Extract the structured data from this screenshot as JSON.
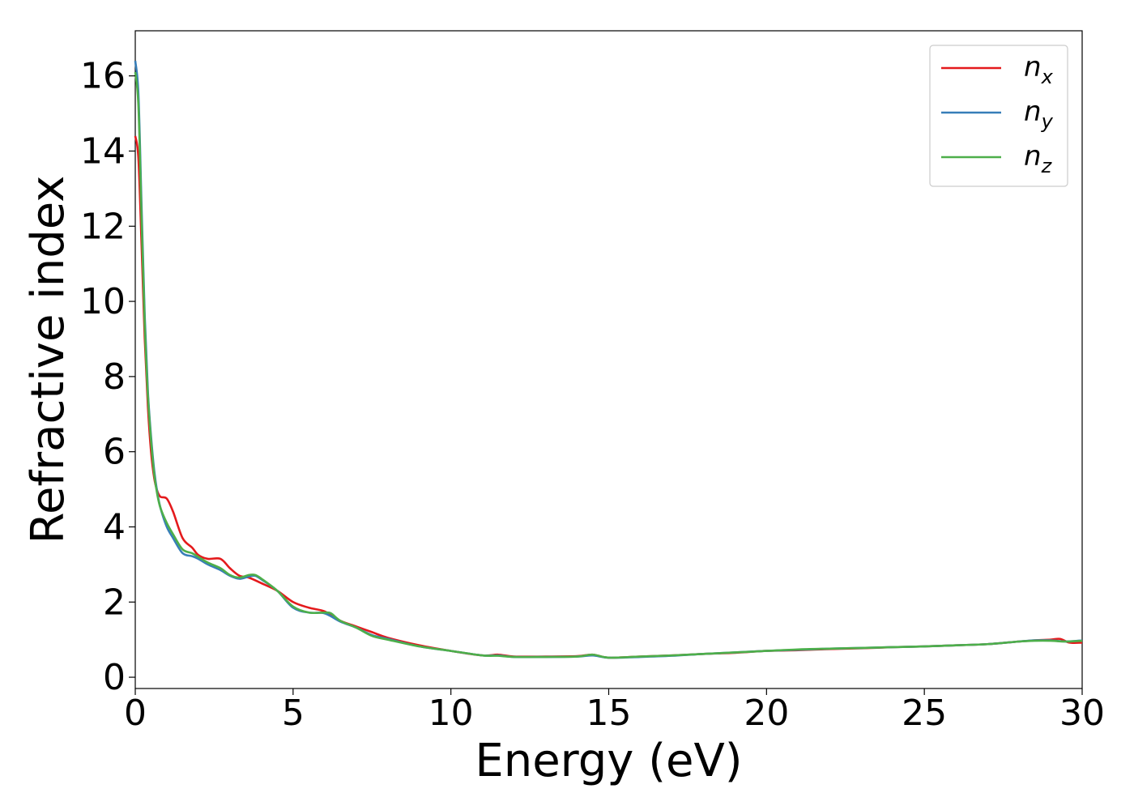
{
  "chart_data": {
    "type": "line",
    "xlabel": "Energy (eV)",
    "ylabel": "Refractive index",
    "xlim": [
      0,
      30
    ],
    "ylim": [
      -0.3,
      17.2
    ],
    "xticks": [
      0,
      5,
      10,
      15,
      20,
      25,
      30
    ],
    "xtick_labels": [
      "0",
      "5",
      "10",
      "15",
      "20",
      "25",
      "30"
    ],
    "yticks": [
      0,
      2,
      4,
      6,
      8,
      10,
      12,
      14,
      16
    ],
    "ytick_labels": [
      "0",
      "2",
      "4",
      "6",
      "8",
      "10",
      "12",
      "14",
      "16"
    ],
    "grid": false,
    "legend_position": "top-right",
    "series": [
      {
        "name": "n_x",
        "legend_base": "n",
        "legend_sub": "x",
        "color": "#e41a1c",
        "x": [
          0,
          0.1,
          0.2,
          0.3,
          0.4,
          0.5,
          0.6,
          0.7,
          0.8,
          1.0,
          1.2,
          1.5,
          1.8,
          2.0,
          2.3,
          2.7,
          3.0,
          3.3,
          3.6,
          4.0,
          4.5,
          5.0,
          5.5,
          6.0,
          6.5,
          7.0,
          7.5,
          8.0,
          9.0,
          10.0,
          11.0,
          11.5,
          12.0,
          13.0,
          14.0,
          14.5,
          15.0,
          16.0,
          17.0,
          18.0,
          19.0,
          20.0,
          21.0,
          22.0,
          23.0,
          24.0,
          25.0,
          26.0,
          27.0,
          28.0,
          28.5,
          29.0,
          29.3,
          29.6,
          30.0
        ],
        "y": [
          14.4,
          13.8,
          11.5,
          9.0,
          7.2,
          6.0,
          5.3,
          4.95,
          4.8,
          4.75,
          4.4,
          3.7,
          3.45,
          3.25,
          3.15,
          3.15,
          2.9,
          2.7,
          2.65,
          2.5,
          2.3,
          2.0,
          1.85,
          1.75,
          1.5,
          1.35,
          1.2,
          1.05,
          0.85,
          0.7,
          0.58,
          0.6,
          0.55,
          0.55,
          0.56,
          0.6,
          0.52,
          0.55,
          0.58,
          0.62,
          0.65,
          0.7,
          0.72,
          0.75,
          0.77,
          0.8,
          0.82,
          0.85,
          0.88,
          0.95,
          0.98,
          1.0,
          1.02,
          0.92,
          0.92
        ]
      },
      {
        "name": "n_y",
        "legend_base": "n",
        "legend_sub": "y",
        "color": "#377eb8",
        "x": [
          0,
          0.1,
          0.2,
          0.3,
          0.4,
          0.5,
          0.6,
          0.7,
          0.8,
          1.0,
          1.2,
          1.5,
          1.8,
          2.0,
          2.3,
          2.7,
          3.0,
          3.3,
          3.6,
          3.8,
          4.0,
          4.5,
          5.0,
          5.5,
          6.0,
          6.5,
          7.0,
          7.5,
          8.0,
          9.0,
          10.0,
          11.0,
          11.5,
          12.0,
          13.0,
          14.0,
          14.5,
          15.0,
          16.0,
          17.0,
          18.0,
          19.0,
          20.0,
          21.0,
          22.0,
          23.0,
          24.0,
          25.0,
          26.0,
          27.0,
          28.0,
          28.5,
          29.0,
          29.5,
          30.0
        ],
        "y": [
          16.4,
          15.5,
          12.5,
          9.6,
          7.6,
          6.4,
          5.5,
          4.9,
          4.5,
          4.0,
          3.7,
          3.3,
          3.22,
          3.15,
          3.0,
          2.85,
          2.7,
          2.62,
          2.68,
          2.7,
          2.6,
          2.3,
          1.85,
          1.72,
          1.7,
          1.48,
          1.32,
          1.12,
          1.02,
          0.82,
          0.7,
          0.58,
          0.58,
          0.54,
          0.54,
          0.55,
          0.58,
          0.52,
          0.54,
          0.57,
          0.62,
          0.66,
          0.7,
          0.73,
          0.76,
          0.78,
          0.8,
          0.82,
          0.85,
          0.88,
          0.95,
          0.98,
          0.98,
          0.95,
          0.98
        ]
      },
      {
        "name": "n_z",
        "legend_base": "n",
        "legend_sub": "z",
        "color": "#4daf4a",
        "x": [
          0,
          0.1,
          0.2,
          0.3,
          0.4,
          0.5,
          0.6,
          0.7,
          0.8,
          1.0,
          1.2,
          1.5,
          1.8,
          2.0,
          2.3,
          2.7,
          3.0,
          3.3,
          3.6,
          3.8,
          4.0,
          4.5,
          5.0,
          5.5,
          6.0,
          6.2,
          6.5,
          7.0,
          7.5,
          8.0,
          9.0,
          10.0,
          11.0,
          11.5,
          12.0,
          13.0,
          14.0,
          14.5,
          15.0,
          16.0,
          17.0,
          18.0,
          19.0,
          20.0,
          21.0,
          22.0,
          23.0,
          24.0,
          25.0,
          26.0,
          27.0,
          28.0,
          28.5,
          29.0,
          29.5,
          30.0
        ],
        "y": [
          16.1,
          15.2,
          12.2,
          9.4,
          7.5,
          6.3,
          5.4,
          4.85,
          4.5,
          4.1,
          3.8,
          3.4,
          3.3,
          3.2,
          3.05,
          2.9,
          2.72,
          2.65,
          2.72,
          2.72,
          2.62,
          2.3,
          1.88,
          1.72,
          1.72,
          1.7,
          1.5,
          1.32,
          1.1,
          1.0,
          0.82,
          0.7,
          0.58,
          0.57,
          0.54,
          0.54,
          0.55,
          0.6,
          0.52,
          0.55,
          0.58,
          0.62,
          0.66,
          0.7,
          0.74,
          0.76,
          0.78,
          0.8,
          0.82,
          0.85,
          0.88,
          0.95,
          0.97,
          0.97,
          0.95,
          0.97
        ]
      }
    ]
  }
}
